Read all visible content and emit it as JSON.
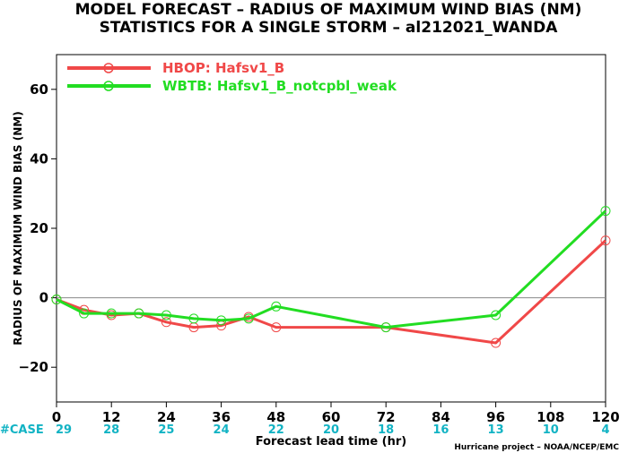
{
  "chart_data": {
    "type": "line",
    "title": "MODEL FORECAST – RADIUS OF MAXIMUM WIND BIAS (NM)",
    "subtitle": "STATISTICS FOR A SINGLE STORM – al212021_WANDA",
    "xlabel": "Forecast lead time (hr)",
    "ylabel": "RADIUS OF MAXIMUM WIND BIAS (NM)",
    "xlim": [
      0,
      120
    ],
    "ylim": [
      -30,
      70
    ],
    "x_ticks": [
      "0",
      "12",
      "24",
      "36",
      "48",
      "60",
      "72",
      "84",
      "96",
      "108",
      "120"
    ],
    "y_ticks": [
      "−20",
      "0",
      "20",
      "40",
      "60"
    ],
    "grid": false,
    "zero_line": true,
    "legend_position": "top-left",
    "series": [
      {
        "name": "HBOP: Hafsv1_B",
        "color": "#f04848",
        "x": [
          0,
          6,
          12,
          18,
          24,
          30,
          36,
          42,
          48,
          72,
          96,
          120
        ],
        "y": [
          -0.5,
          -3.5,
          -5,
          -4.5,
          -7,
          -8.5,
          -8,
          -5.5,
          -8.5,
          -8.5,
          -13,
          16.5
        ]
      },
      {
        "name": "WBTB: Hafsv1_B_notcpbl_weak",
        "color": "#22dd22",
        "x": [
          0,
          6,
          12,
          18,
          24,
          30,
          36,
          42,
          48,
          72,
          96,
          120
        ],
        "y": [
          -0.5,
          -4.5,
          -4.5,
          -4.5,
          -5,
          -6,
          -6.5,
          -6,
          -2.5,
          -8.5,
          -5,
          25
        ]
      }
    ],
    "case_label": "#CASE",
    "case_counts": [
      "29",
      "28",
      "25",
      "24",
      "22",
      "20",
      "18",
      "16",
      "13",
      "10",
      "4"
    ],
    "case_color": "#12b3c4",
    "credit": "Hurricane project – NOAA/NCEP/EMC"
  }
}
